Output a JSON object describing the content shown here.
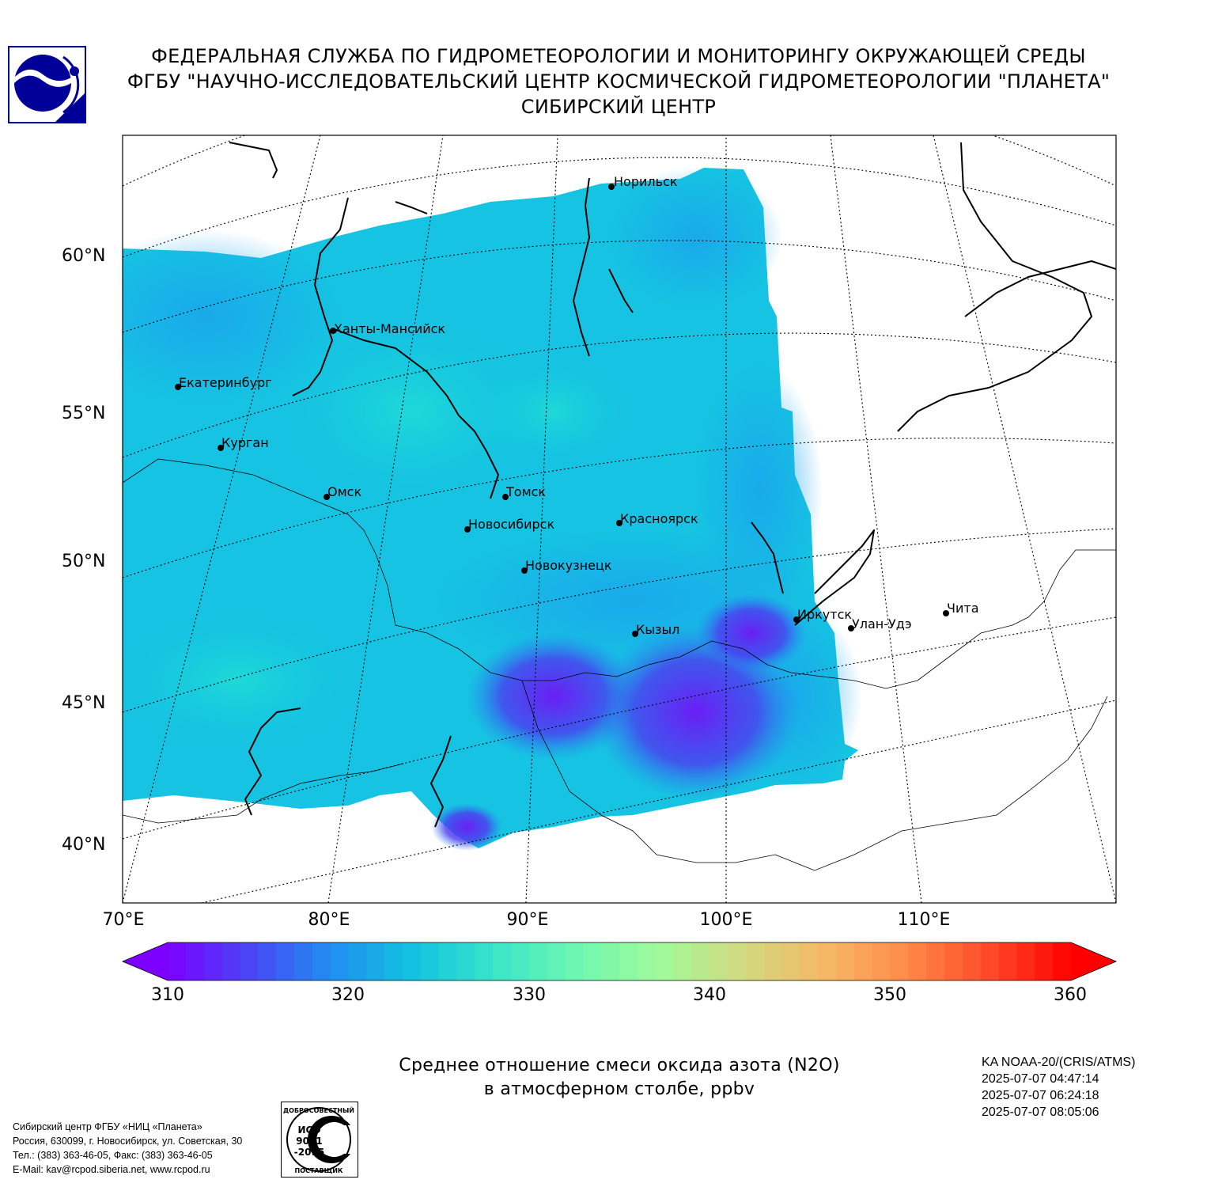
{
  "header": {
    "line1": "ФЕДЕРАЛЬНАЯ СЛУЖБА ПО ГИДРОМЕТЕОРОЛОГИИ И МОНИТОРИНГУ ОКРУЖАЮЩЕЙ СРЕДЫ",
    "line2": "ФГБУ \"НАУЧНО-ИССЛЕДОВАТЕЛЬСКИЙ ЦЕНТР КОСМИЧЕСКОЙ ГИДРОМЕТЕОРОЛОГИИ \"ПЛАНЕТА\"",
    "line3": "СИБИРСКИЙ ЦЕНТР"
  },
  "logo": {
    "icon": "planeta-logo-icon",
    "color": "#000099"
  },
  "map": {
    "lat_labels": [
      "60°N",
      "55°N",
      "50°N",
      "45°N",
      "40°N"
    ],
    "lon_labels": [
      "70°E",
      "80°E",
      "90°E",
      "100°E",
      "110°E"
    ],
    "cities": [
      {
        "name": "Норильск"
      },
      {
        "name": "Ханты-Мансийск"
      },
      {
        "name": "Екатеринбург"
      },
      {
        "name": "Курган"
      },
      {
        "name": "Омск"
      },
      {
        "name": "Томск"
      },
      {
        "name": "Новосибирск"
      },
      {
        "name": "Красноярск"
      },
      {
        "name": "Новокузнецк"
      },
      {
        "name": "Иркутск"
      },
      {
        "name": "Кызыл"
      },
      {
        "name": "Улан-Удэ"
      },
      {
        "name": "Чита"
      }
    ]
  },
  "colorbar": {
    "ticks": [
      "310",
      "320",
      "330",
      "340",
      "350",
      "360"
    ],
    "min": 310,
    "max": 360,
    "colors": [
      "#7b00ff",
      "#4a46f5",
      "#1f8ef0",
      "#12c4e0",
      "#3be6c9",
      "#6ef7b0",
      "#a0fa9a",
      "#d2da80",
      "#f6b866",
      "#ff8a48",
      "#ff4a28",
      "#ff0000"
    ]
  },
  "title": {
    "line1": "Среднее отношение смеси оксида азота (N2O)",
    "line2": "в атмосферном столбе, ppbv"
  },
  "satellite": {
    "name": "KA NOAA-20/(CRIS/ATMS)",
    "times": [
      "2025-07-07 04:47:14",
      "2025-07-07 06:24:18",
      "2025-07-07 08:05:06"
    ]
  },
  "footer": {
    "line1": "Сибирский центр ФГБУ «НИЦ «Планета»",
    "line2": "Россия, 630099, г. Новосибирск, ул. Советская, 30",
    "line3": "Тел.: (383) 363-46-05, Факс: (383) 363-46-05",
    "line4": "E-Mail: kav@rcpod.siberia.net, www.rcpod.ru"
  },
  "iso_badge": {
    "top": "ДОБРОСОВЕСТНЫЙ",
    "mid1": "ИСО",
    "mid2": "9001",
    "mid3": "-2015",
    "bottom": "ПОСТАВЩИК"
  }
}
